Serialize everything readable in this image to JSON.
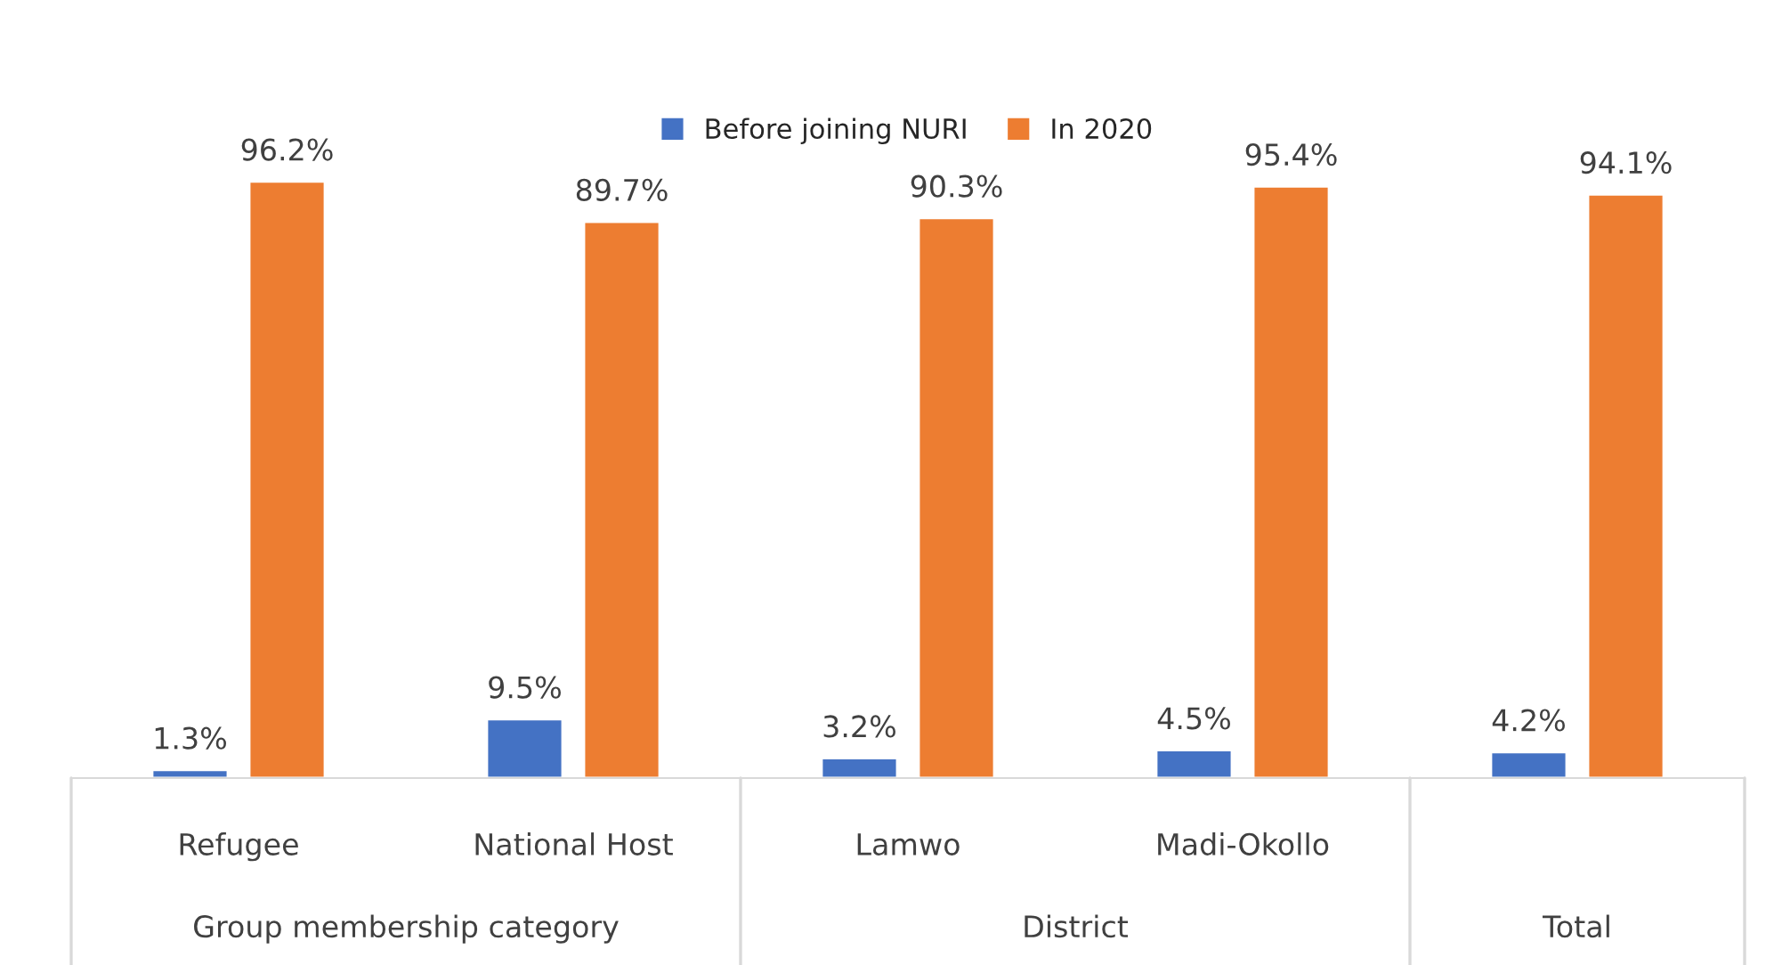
{
  "chart_data": {
    "type": "bar",
    "categories": [
      "Refugee",
      "National Host",
      "Lamwo",
      "Madi-Okollo",
      null
    ],
    "series": [
      {
        "name": "Before joining NURI",
        "color": "#4472c4",
        "values": [
          1.3,
          9.5,
          3.2,
          4.5,
          4.2
        ],
        "value_labels": [
          "1.3%",
          "9.5%",
          "3.2%",
          "4.5%",
          "4.2%"
        ]
      },
      {
        "name": "In 2020",
        "color": "#ed7d31",
        "values": [
          96.2,
          89.7,
          90.3,
          95.4,
          94.1
        ],
        "value_labels": [
          "96.2%",
          "89.7%",
          "90.3%",
          "95.4%",
          "94.1%"
        ]
      }
    ],
    "annotations": [
      "Group membership category",
      "District",
      "Total"
    ],
    "legend": "top",
    "grid": false
  }
}
